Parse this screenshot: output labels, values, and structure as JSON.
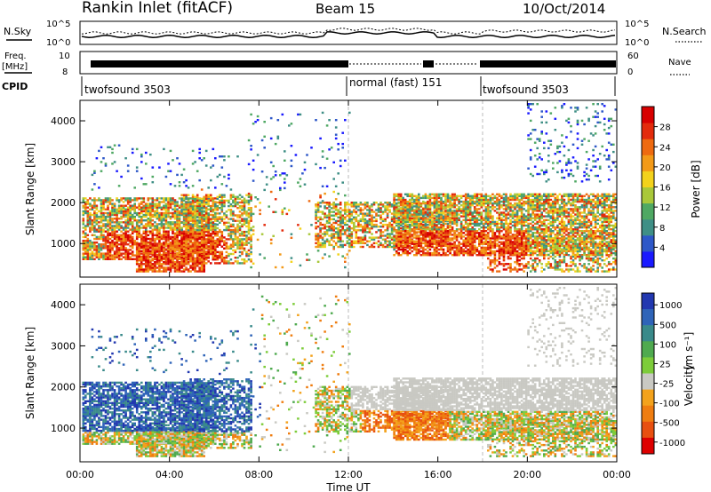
{
  "header": {
    "station": "Rankin Inlet (fitACF)",
    "beam": "Beam 15",
    "date": "10/Oct/2014"
  },
  "top_panels": {
    "nsky_label": "N.Sky",
    "nsky_ticks": [
      "10^5",
      "10^0"
    ],
    "nsearch_label": "N.Search",
    "nsearch_ticks": [
      "10^5",
      "10^0"
    ],
    "freq_label_line1": "Freq.",
    "freq_label_line2": "[MHz]",
    "freq_ticks": [
      "10",
      "8"
    ],
    "nave_label": "Nave",
    "nave_ticks": [
      "60",
      "0"
    ],
    "cpid_label": "CPID",
    "cpid_segments": [
      {
        "text": "twofsound 3503"
      },
      {
        "text": "normal (fast) 151"
      },
      {
        "text": "twofsound 3503"
      }
    ]
  },
  "chart_data": [
    {
      "type": "heatmap",
      "title": "",
      "ylabel": "Slant Range [km]",
      "xlabel": "",
      "x": {
        "start": "00:00",
        "end": "00:00",
        "unit": "hours UT",
        "range": [
          0,
          24
        ]
      },
      "ylim": [
        180,
        4500
      ],
      "yticks": [
        "1000",
        "2000",
        "3000",
        "4000"
      ],
      "colorbar": {
        "label": "Power [dB]",
        "ticks": [
          "4",
          "8",
          "12",
          "16",
          "20",
          "24",
          "28"
        ],
        "colors": [
          "#1a1aff",
          "#2e58c8",
          "#3f8f86",
          "#4fa863",
          "#a9c83a",
          "#f3d21c",
          "#f39a18",
          "#ee6a10",
          "#e32b0c",
          "#d80000"
        ]
      }
    },
    {
      "type": "heatmap",
      "title": "",
      "ylabel": "Slant Range [km]",
      "xlabel": "Time UT",
      "x": {
        "start": "00:00",
        "end": "00:00",
        "unit": "hours UT",
        "range": [
          0,
          24
        ]
      },
      "xticks": [
        "00:00",
        "04:00",
        "08:00",
        "12:00",
        "16:00",
        "20:00",
        "00:00"
      ],
      "ylim": [
        180,
        4500
      ],
      "yticks": [
        "1000",
        "2000",
        "3000",
        "4000"
      ],
      "colorbar": {
        "label": "Velocity",
        "label_unit": "[m s⁻¹]",
        "ticks": [
          "1000",
          "500",
          "100",
          "25",
          "-25",
          "-100",
          "-500",
          "-1000"
        ],
        "colors": [
          "#2238b0",
          "#2f64b8",
          "#3a8a8a",
          "#4faa4f",
          "#7dcc3a",
          "#c9c9c3",
          "#f3a21c",
          "#ef7d10",
          "#e85010",
          "#dd0000"
        ]
      }
    }
  ]
}
